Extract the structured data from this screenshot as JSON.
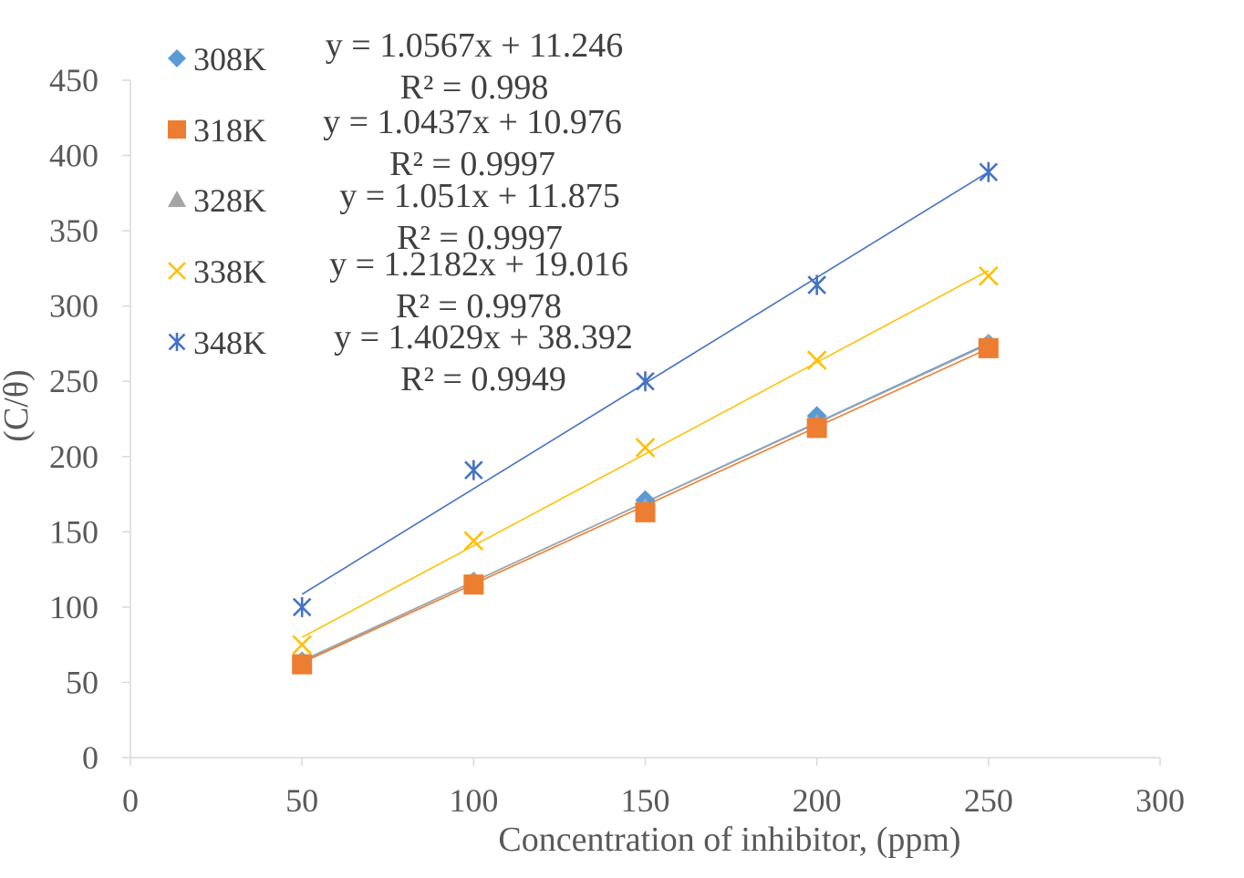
{
  "chart_data": {
    "type": "scatter",
    "title": "",
    "xlabel": "Concentration of inhibitor, (ppm)",
    "ylabel": "(C/θ)",
    "xlim": [
      0,
      300
    ],
    "ylim": [
      0,
      450
    ],
    "xticks": [
      0,
      50,
      100,
      150,
      200,
      250,
      300
    ],
    "yticks": [
      0,
      50,
      100,
      150,
      200,
      250,
      300,
      350,
      400,
      450
    ],
    "legend_position": "top-left",
    "x": [
      50,
      100,
      150,
      200,
      250
    ],
    "series": [
      {
        "name": "308K",
        "marker": "diamond",
        "color": "#5B9BD5",
        "values": [
          64,
          117,
          171,
          227,
          275
        ],
        "trendline": {
          "slope": 1.0567,
          "intercept": 11.246
        },
        "equation": "y = 1.0567x + 11.246",
        "r2": "R² = 0.998"
      },
      {
        "name": "318K",
        "marker": "square",
        "color": "#ED7D31",
        "values": [
          62,
          115,
          163,
          219,
          272
        ],
        "trendline": {
          "slope": 1.0437,
          "intercept": 10.976
        },
        "equation": "y = 1.0437x + 10.976",
        "r2": "R² = 0.9997"
      },
      {
        "name": "328K",
        "marker": "triangle",
        "color": "#A5A5A5",
        "values": [
          64,
          117,
          166,
          222,
          275
        ],
        "trendline": {
          "slope": 1.051,
          "intercept": 11.875
        },
        "equation": "y = 1.051x + 11.875",
        "r2": "R² = 0.9997"
      },
      {
        "name": "338K",
        "marker": "x",
        "color": "#FFC000",
        "values": [
          75,
          144,
          206,
          264,
          320
        ],
        "trendline": {
          "slope": 1.2182,
          "intercept": 19.016
        },
        "equation": "y = 1.2182x + 19.016",
        "r2": "R² = 0.9978"
      },
      {
        "name": "348K",
        "marker": "star",
        "color": "#4472C4",
        "values": [
          100,
          191,
          250,
          314,
          389
        ],
        "trendline": {
          "slope": 1.4029,
          "intercept": 38.392
        },
        "equation": "y = 1.4029x + 38.392",
        "r2": "R² = 0.9949"
      }
    ]
  }
}
